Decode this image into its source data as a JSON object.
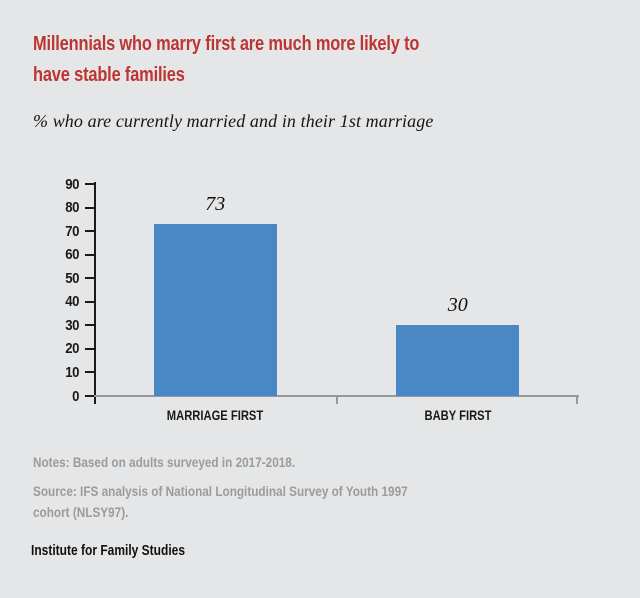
{
  "colors": {
    "background": "#e5e6e7",
    "title_red": "#bd3532",
    "bar_blue": "#4a87c5",
    "axis_black": "#1a1a1a",
    "xaxis_gray": "#97989a",
    "notes_gray": "#9b9b9b"
  },
  "header": {
    "title_lines": [
      "Millennials who marry first are much more likely to",
      "have stable families"
    ],
    "subtitle": "% who are currently married and in their 1st marriage"
  },
  "chart_data": {
    "type": "bar",
    "title": "Millennials who marry first are much more likely to have stable families",
    "subtitle": "% who are currently married and in their 1st marriage",
    "categories": [
      "MARRIAGE FIRST",
      "BABY FIRST"
    ],
    "values": [
      73,
      30
    ],
    "value_labels": [
      "73",
      "30"
    ],
    "xlabel": "",
    "ylabel": "",
    "ylim": [
      0,
      90
    ],
    "yticks": [
      0,
      10,
      20,
      30,
      40,
      50,
      60,
      70,
      80,
      90
    ],
    "grid": false,
    "legend": false,
    "bar_color": "#4a87c5"
  },
  "footer": {
    "notes": "Notes: Based on adults surveyed in 2017-2018.",
    "source_lines": [
      "Source: IFS analysis of National Longitudinal Survey of Youth 1997",
      "cohort (NLSY97)."
    ],
    "brand": "Institute for Family Studies"
  }
}
